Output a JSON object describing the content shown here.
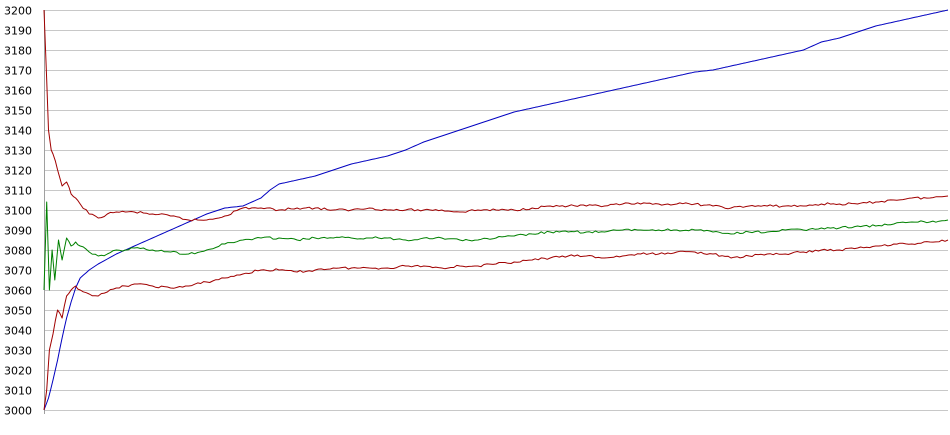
{
  "chart_data": {
    "type": "line",
    "title": "",
    "xlabel": "",
    "ylabel": "",
    "ylim": [
      3000,
      3200
    ],
    "y_ticks": [
      "3000",
      "3010",
      "3020",
      "3030",
      "3040",
      "3050",
      "3060",
      "3070",
      "3080",
      "3090",
      "3100",
      "3110",
      "3120",
      "3130",
      "3140",
      "3150",
      "3160",
      "3170",
      "3180",
      "3190",
      "3200"
    ],
    "xlim": [
      0,
      100
    ],
    "grid": true,
    "legend": "none",
    "series": [
      {
        "color": "#0000c0",
        "x": [
          0,
          0.5,
          1,
          1.5,
          2,
          2.5,
          3,
          3.5,
          4,
          5,
          6,
          8,
          10,
          12,
          14,
          16,
          18,
          20,
          22,
          24,
          25,
          26,
          27,
          28,
          30,
          32,
          34,
          36,
          38,
          40,
          42,
          44,
          46,
          48,
          50,
          52,
          54,
          56,
          58,
          60,
          62,
          64,
          66,
          68,
          70,
          72,
          74,
          76,
          78,
          80,
          82,
          84,
          86,
          88,
          90,
          92,
          94,
          96,
          98,
          100
        ],
        "y": [
          3000,
          3006,
          3015,
          3025,
          3036,
          3046,
          3054,
          3061,
          3066,
          3070,
          3073,
          3078,
          3082,
          3086,
          3090,
          3094,
          3098,
          3101,
          3102,
          3106,
          3110,
          3113,
          3114,
          3115,
          3117,
          3120,
          3123,
          3125,
          3127,
          3130,
          3134,
          3137,
          3140,
          3143,
          3146,
          3149,
          3151,
          3153,
          3155,
          3157,
          3159,
          3161,
          3163,
          3165,
          3167,
          3169,
          3170,
          3172,
          3174,
          3176,
          3178,
          3180,
          3184,
          3186,
          3189,
          3192,
          3194,
          3196,
          3198,
          3200
        ]
      },
      {
        "color": "#a00000",
        "x": [
          0,
          0.3,
          0.5,
          0.8,
          1,
          1.5,
          2,
          2.5,
          3,
          3.5,
          4,
          5,
          6,
          7,
          8,
          9,
          10,
          12,
          14,
          16,
          18,
          20,
          22,
          24,
          26,
          28,
          30,
          32,
          34,
          36,
          38,
          40,
          42,
          44,
          46,
          48,
          50,
          52,
          54,
          56,
          58,
          60,
          62,
          64,
          66,
          68,
          70,
          72,
          74,
          76,
          78,
          80,
          82,
          84,
          86,
          88,
          90,
          92,
          94,
          96,
          98,
          100
        ],
        "y": [
          3200,
          3165,
          3140,
          3130,
          3128,
          3120,
          3112,
          3114,
          3108,
          3106,
          3103,
          3098,
          3096,
          3098,
          3099,
          3099,
          3099,
          3098,
          3097,
          3095,
          3095,
          3097,
          3101,
          3101,
          3100,
          3101,
          3101,
          3100,
          3100,
          3101,
          3100,
          3100,
          3100,
          3100,
          3099,
          3100,
          3100,
          3100,
          3101,
          3102,
          3102,
          3102,
          3102,
          3103,
          3103,
          3103,
          3103,
          3103,
          3102,
          3101,
          3102,
          3102,
          3102,
          3102,
          3103,
          3103,
          3103,
          3104,
          3105,
          3106,
          3106,
          3107
        ]
      },
      {
        "color": "#008000",
        "x": [
          0,
          0.3,
          0.6,
          0.9,
          1.2,
          1.6,
          2,
          2.5,
          3,
          3.5,
          4,
          5,
          6,
          7,
          8,
          9,
          10,
          12,
          14,
          16,
          18,
          20,
          22,
          24,
          26,
          28,
          30,
          32,
          34,
          36,
          38,
          40,
          42,
          44,
          46,
          48,
          50,
          52,
          54,
          56,
          58,
          60,
          62,
          64,
          66,
          68,
          70,
          72,
          74,
          76,
          78,
          80,
          82,
          84,
          86,
          88,
          90,
          92,
          94,
          96,
          98,
          100
        ],
        "y": [
          3060,
          3104,
          3060,
          3080,
          3065,
          3085,
          3075,
          3086,
          3082,
          3084,
          3082,
          3079,
          3077,
          3078,
          3080,
          3080,
          3081,
          3080,
          3079,
          3078,
          3080,
          3083,
          3085,
          3086,
          3086,
          3085,
          3086,
          3086,
          3086,
          3086,
          3086,
          3085,
          3086,
          3086,
          3085,
          3085,
          3086,
          3087,
          3088,
          3089,
          3089,
          3089,
          3089,
          3090,
          3090,
          3090,
          3090,
          3090,
          3089,
          3088,
          3089,
          3089,
          3090,
          3090,
          3091,
          3091,
          3092,
          3092,
          3093,
          3094,
          3094,
          3095
        ]
      },
      {
        "color": "#a00000",
        "x": [
          0,
          0.3,
          0.6,
          1,
          1.5,
          2,
          2.5,
          3,
          3.5,
          4,
          5,
          6,
          7,
          8,
          9,
          10,
          12,
          14,
          16,
          18,
          20,
          22,
          24,
          26,
          28,
          30,
          32,
          34,
          36,
          38,
          40,
          42,
          44,
          46,
          48,
          50,
          52,
          54,
          56,
          58,
          60,
          62,
          64,
          66,
          68,
          70,
          72,
          74,
          76,
          78,
          80,
          82,
          84,
          86,
          88,
          90,
          92,
          94,
          96,
          98,
          100
        ],
        "y": [
          3000,
          3010,
          3030,
          3038,
          3050,
          3046,
          3057,
          3060,
          3062,
          3060,
          3058,
          3057,
          3059,
          3061,
          3062,
          3063,
          3062,
          3061,
          3062,
          3064,
          3066,
          3068,
          3070,
          3070,
          3069,
          3070,
          3071,
          3071,
          3071,
          3071,
          3072,
          3072,
          3071,
          3072,
          3072,
          3073,
          3074,
          3075,
          3076,
          3077,
          3077,
          3076,
          3077,
          3078,
          3078,
          3079,
          3079,
          3078,
          3076,
          3077,
          3078,
          3078,
          3079,
          3080,
          3080,
          3081,
          3082,
          3083,
          3083,
          3084,
          3085
        ]
      }
    ]
  }
}
